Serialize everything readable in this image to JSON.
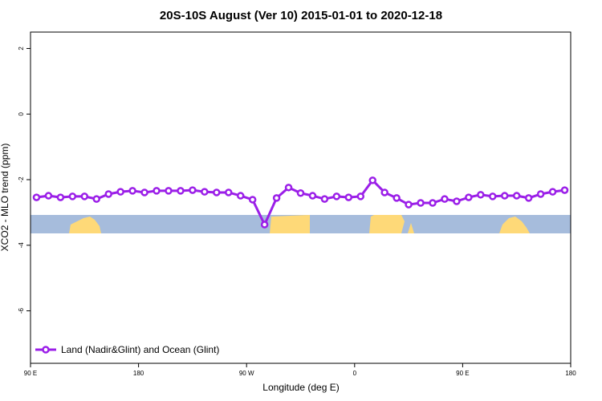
{
  "chart_data": {
    "type": "line",
    "title": "20S-10S August (Ver 10)   2015-01-01 to 2020-12-18",
    "x_label": "Longitude (deg E)",
    "y_label": "XCO2 - MLO trend (ppm)",
    "x": [
      95,
      105,
      115,
      125,
      135,
      145,
      155,
      165,
      175,
      185,
      195,
      205,
      215,
      225,
      235,
      245,
      255,
      265,
      275,
      285,
      295,
      305,
      315,
      325,
      335,
      345,
      355,
      365,
      375,
      385,
      395,
      405,
      415,
      425,
      435,
      445,
      455,
      465,
      475,
      485,
      495,
      505,
      515,
      525,
      535
    ],
    "series": [
      {
        "name": "Land (Nadir&Glint) and Ocean (Glint)",
        "color": "#9b1fe8",
        "values": [
          -2.54,
          -2.49,
          -2.54,
          -2.51,
          -2.51,
          -2.59,
          -2.44,
          -2.37,
          -2.34,
          -2.39,
          -2.34,
          -2.34,
          -2.34,
          -2.32,
          -2.37,
          -2.39,
          -2.39,
          -2.49,
          -2.61,
          -3.37,
          -2.56,
          -2.24,
          -2.41,
          -2.49,
          -2.59,
          -2.51,
          -2.54,
          -2.51,
          -2.02,
          -2.39,
          -2.56,
          -2.76,
          -2.71,
          -2.71,
          -2.59,
          -2.66,
          -2.54,
          -2.46,
          -2.51,
          -2.49,
          -2.49,
          -2.56,
          -2.44,
          -2.37,
          -2.32
        ]
      }
    ],
    "xlim": [
      90,
      540
    ],
    "xticks": [
      {
        "value": 90,
        "label": "90 E"
      },
      180,
      {
        "value": 270,
        "label": "90 W"
      },
      {
        "value": 360,
        "label": "0"
      },
      {
        "value": 450,
        "label": "90 E"
      },
      {
        "value": 540,
        "label": "180"
      }
    ],
    "ylim": [
      -7.6,
      2.5
    ],
    "yticks": [
      -6,
      -4,
      -2,
      0,
      2
    ],
    "legend": "bottom-left"
  }
}
